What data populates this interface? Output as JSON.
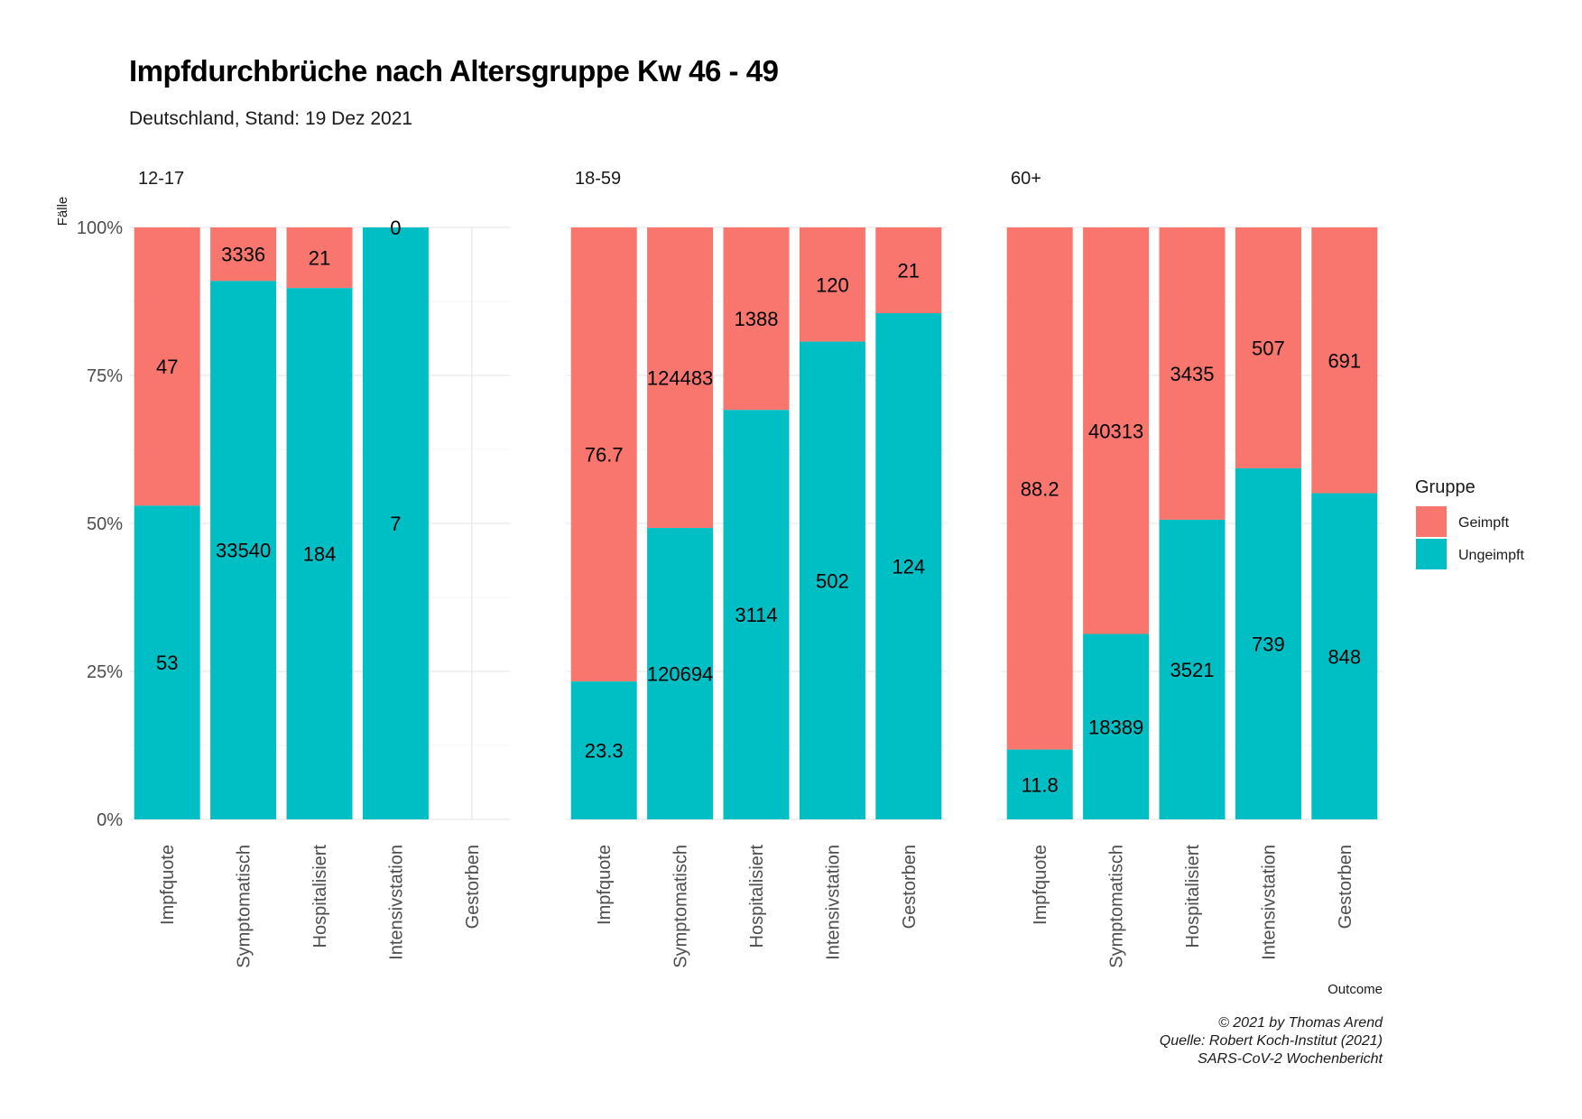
{
  "chart_data": {
    "type": "bar",
    "stacked": true,
    "normalized": true,
    "title": "Impfdurchbrüche nach Altersgruppe Kw 46 - 49",
    "subtitle": "Deutschland, Stand: 19 Dez 2021",
    "xlabel": "Outcome",
    "ylabel": "Fälle",
    "ylim": [
      0,
      1
    ],
    "y_ticks": [
      "0%",
      "25%",
      "50%",
      "75%",
      "100%"
    ],
    "grid": true,
    "categories": [
      "Impfquote",
      "Symptomatisch",
      "Hospitalisiert",
      "Intensivstation",
      "Gestorben"
    ],
    "legend": {
      "title": "Gruppe",
      "position": "right",
      "entries": [
        {
          "name": "Geimpft",
          "color": "#F8766D"
        },
        {
          "name": "Ungeimpft",
          "color": "#00BFC4"
        }
      ]
    },
    "facets": [
      {
        "label": "12-17",
        "geimpft": [
          "47",
          "3336",
          "21",
          "0",
          ""
        ],
        "ungeimpft": [
          "53",
          "33540",
          "184",
          "7",
          ""
        ],
        "geimpft_values": [
          47,
          3336,
          21,
          0,
          null
        ],
        "ungeimpft_values": [
          53,
          33540,
          184,
          7,
          null
        ]
      },
      {
        "label": "18-59",
        "geimpft": [
          "76.7",
          "124483",
          "1388",
          "120",
          "21"
        ],
        "ungeimpft": [
          "23.3",
          "120694",
          "3114",
          "502",
          "124"
        ],
        "geimpft_values": [
          76.7,
          124483,
          1388,
          120,
          21
        ],
        "ungeimpft_values": [
          23.3,
          120694,
          3114,
          502,
          124
        ]
      },
      {
        "label": "60+",
        "geimpft": [
          "88.2",
          "40313",
          "3435",
          "507",
          "691"
        ],
        "ungeimpft": [
          "11.8",
          "18389",
          "3521",
          "739",
          "848"
        ],
        "geimpft_values": [
          88.2,
          40313,
          3435,
          507,
          691
        ],
        "ungeimpft_values": [
          11.8,
          18389,
          3521,
          739,
          848
        ]
      }
    ],
    "caption": [
      "© 2021 by Thomas Arend",
      "Quelle: Robert Koch-Institut (2021)",
      "SARS-CoV-2 Wochenbericht"
    ]
  }
}
